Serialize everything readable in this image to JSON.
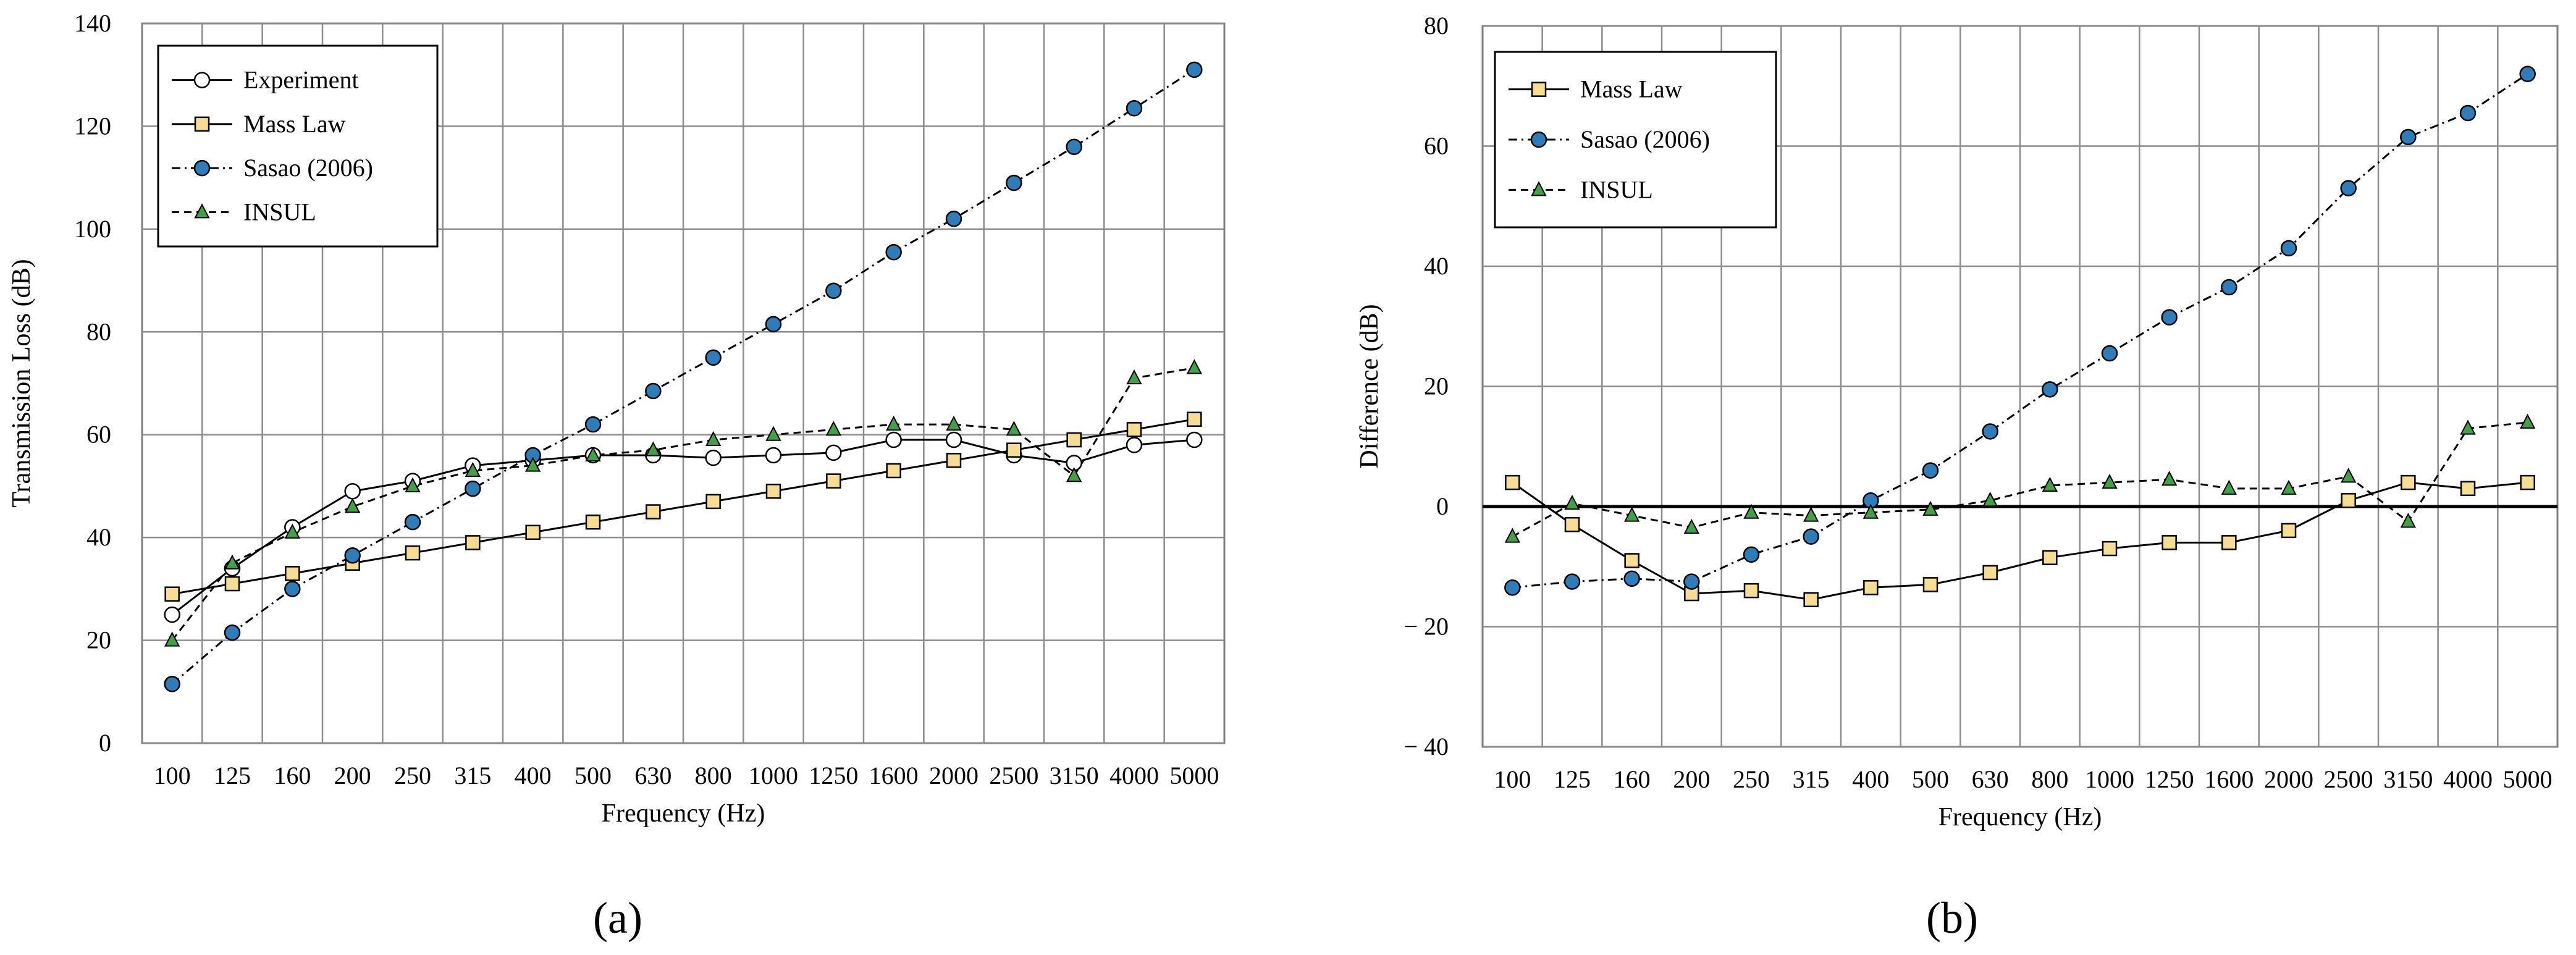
{
  "chart_data": [
    {
      "type": "line",
      "panel_label": "(a)",
      "title": "",
      "xlabel": "Frequency (Hz)",
      "ylabel": "Transmission Loss (dB)",
      "ylim": [
        0,
        140
      ],
      "yticks": [
        0,
        20,
        40,
        60,
        80,
        100,
        120,
        140
      ],
      "grid": true,
      "legend_position": "top-left",
      "categories": [
        "100",
        "125",
        "160",
        "200",
        "250",
        "315",
        "400",
        "500",
        "630",
        "800",
        "1000",
        "1250",
        "1600",
        "2000",
        "2500",
        "3150",
        "4000",
        "5000"
      ],
      "series": [
        {
          "name": "Experiment",
          "marker": "circle",
          "line": "solid",
          "color": "#000000",
          "fill": "#ffffff",
          "values": [
            25,
            34,
            42,
            49,
            51,
            54,
            55,
            56,
            56,
            55.5,
            56,
            56.5,
            59,
            59,
            56,
            54.5,
            58,
            59
          ]
        },
        {
          "name": "Mass Law",
          "marker": "square",
          "line": "solid",
          "color": "#000000",
          "fill": "#f7dd94",
          "values": [
            29,
            31,
            33,
            35,
            37,
            39,
            41,
            43,
            45,
            47,
            49,
            51,
            53,
            55,
            57,
            59,
            61,
            63
          ]
        },
        {
          "name": "Sasao (2006)",
          "marker": "circle",
          "line": "dashdot",
          "color": "#000000",
          "fill": "#2e7cb8",
          "values": [
            11.5,
            21.5,
            30,
            36.5,
            43,
            49.5,
            56,
            62,
            68.5,
            75,
            81.5,
            88,
            95.5,
            102,
            109,
            116,
            123.5,
            131
          ]
        },
        {
          "name": "INSUL",
          "marker": "triangle",
          "line": "dashed",
          "color": "#000000",
          "fill": "#43a047",
          "values": [
            20,
            35,
            41,
            46,
            50,
            53,
            54,
            56,
            57,
            59,
            60,
            61,
            62,
            62,
            61,
            52,
            71,
            73
          ]
        }
      ]
    },
    {
      "type": "line",
      "panel_label": "(b)",
      "title": "",
      "xlabel": "Frequency (Hz)",
      "ylabel": "Difference (dB)",
      "ylim": [
        -40,
        80
      ],
      "yticks": [
        -40,
        -20,
        0,
        20,
        40,
        60,
        80
      ],
      "ytick_labels": [
        "− 40",
        "− 20",
        "0",
        "20",
        "40",
        "60",
        "80"
      ],
      "grid": true,
      "legend_position": "top-left",
      "categories": [
        "100",
        "125",
        "160",
        "200",
        "250",
        "315",
        "400",
        "500",
        "630",
        "800",
        "1000",
        "1250",
        "1600",
        "2000",
        "2500",
        "3150",
        "4000",
        "5000"
      ],
      "series": [
        {
          "name": "Mass Law",
          "marker": "square",
          "line": "solid",
          "color": "#000000",
          "fill": "#f7dd94",
          "values": [
            4,
            -3,
            -9,
            -14.5,
            -14,
            -15.5,
            -13.5,
            -13,
            -11,
            -8.5,
            -7,
            -6,
            -6,
            -4,
            1,
            4,
            3,
            4
          ]
        },
        {
          "name": "Sasao (2006)",
          "marker": "circle",
          "line": "dashdot",
          "color": "#000000",
          "fill": "#2e7cb8",
          "values": [
            -13.5,
            -12.5,
            -12,
            -12.5,
            -8,
            -5,
            1,
            6,
            12.5,
            19.5,
            25.5,
            31.5,
            36.5,
            43,
            53,
            61.5,
            65.5,
            72
          ]
        },
        {
          "name": "INSUL",
          "marker": "triangle",
          "line": "dashed",
          "color": "#000000",
          "fill": "#43a047",
          "values": [
            -5,
            0.5,
            -1.5,
            -3.5,
            -1,
            -1.5,
            -1,
            -0.5,
            1,
            3.5,
            4,
            4.5,
            3,
            3,
            5,
            -2.5,
            13,
            14
          ]
        }
      ]
    }
  ]
}
